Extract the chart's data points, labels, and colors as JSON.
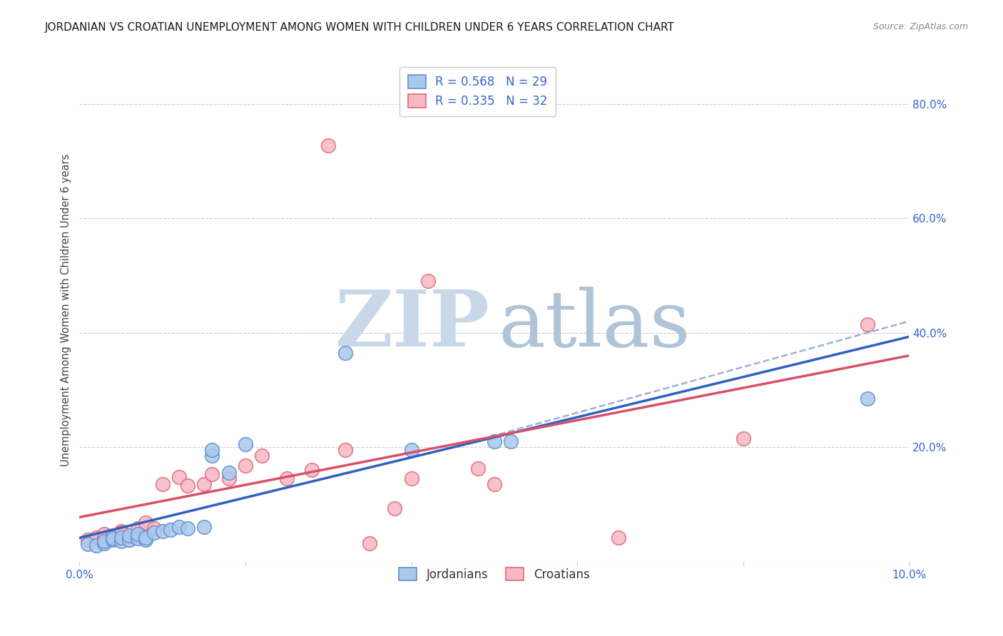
{
  "title": "JORDANIAN VS CROATIAN UNEMPLOYMENT AMONG WOMEN WITH CHILDREN UNDER 6 YEARS CORRELATION CHART",
  "source": "Source: ZipAtlas.com",
  "ylabel": "Unemployment Among Women with Children Under 6 years",
  "xlim": [
    0.0,
    0.1
  ],
  "ylim": [
    0.0,
    0.88
  ],
  "xticks": [
    0.0,
    0.02,
    0.04,
    0.06,
    0.08,
    0.1
  ],
  "xticklabels": [
    "0.0%",
    "",
    "",
    "",
    "",
    "10.0%"
  ],
  "yticks_right": [
    0.0,
    0.2,
    0.4,
    0.6,
    0.8
  ],
  "yticklabels_right": [
    "",
    "20.0%",
    "40.0%",
    "60.0%",
    "80.0%"
  ],
  "legend_entry1": "R = 0.568   N = 29",
  "legend_entry2": "R = 0.335   N = 32",
  "legend_bottom1": "Jordanians",
  "legend_bottom2": "Croatians",
  "blue_face": "#aac8ee",
  "pink_face": "#f7b8c4",
  "blue_edge": "#6090c8",
  "pink_edge": "#e06878",
  "blue_line_color": "#3060c0",
  "pink_line_color": "#d85068",
  "dashed_line_color": "#90aad0",
  "grid_color": "#ccccdd",
  "watermark_zip_color": "#c8d8e8",
  "watermark_atlas_color": "#b0c4d8",
  "title_fontsize": 11,
  "source_fontsize": 9,
  "legend_fontsize": 12,
  "jordanians_x": [
    0.001,
    0.002,
    0.003,
    0.003,
    0.004,
    0.004,
    0.005,
    0.005,
    0.006,
    0.006,
    0.007,
    0.007,
    0.008,
    0.008,
    0.009,
    0.01,
    0.011,
    0.012,
    0.013,
    0.015,
    0.016,
    0.016,
    0.018,
    0.02,
    0.032,
    0.04,
    0.05,
    0.052,
    0.095
  ],
  "jordanians_y": [
    0.03,
    0.028,
    0.032,
    0.035,
    0.038,
    0.04,
    0.035,
    0.042,
    0.038,
    0.045,
    0.04,
    0.048,
    0.038,
    0.042,
    0.05,
    0.052,
    0.055,
    0.06,
    0.058,
    0.06,
    0.185,
    0.195,
    0.155,
    0.205,
    0.365,
    0.195,
    0.21,
    0.21,
    0.285
  ],
  "croatians_x": [
    0.001,
    0.002,
    0.003,
    0.003,
    0.004,
    0.005,
    0.005,
    0.006,
    0.007,
    0.008,
    0.009,
    0.01,
    0.012,
    0.013,
    0.015,
    0.016,
    0.018,
    0.02,
    0.022,
    0.025,
    0.028,
    0.03,
    0.032,
    0.035,
    0.038,
    0.04,
    0.042,
    0.048,
    0.05,
    0.065,
    0.08,
    0.095
  ],
  "croatians_y": [
    0.038,
    0.042,
    0.04,
    0.048,
    0.045,
    0.052,
    0.05,
    0.038,
    0.058,
    0.068,
    0.058,
    0.135,
    0.148,
    0.132,
    0.135,
    0.152,
    0.145,
    0.168,
    0.185,
    0.145,
    0.16,
    0.728,
    0.195,
    0.032,
    0.092,
    0.145,
    0.49,
    0.162,
    0.135,
    0.042,
    0.215,
    0.415
  ]
}
